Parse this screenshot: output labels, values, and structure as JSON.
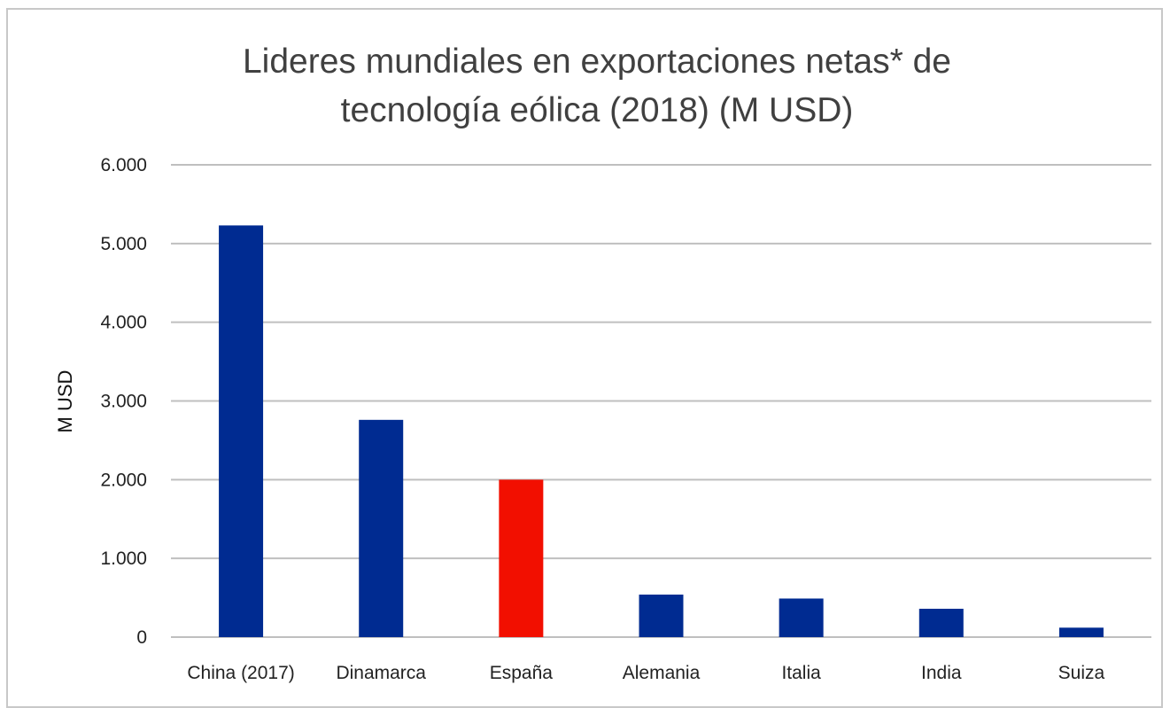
{
  "chart_data": {
    "type": "bar",
    "title": "Lideres mundiales en exportaciones netas* de tecnología eólica (2018) (M USD)",
    "title_lines": [
      "Lideres mundiales en exportaciones netas* de",
      "tecnología eólica (2018) (M USD)"
    ],
    "ylabel": "M USD",
    "xlabel": "",
    "ylim": [
      0,
      6000
    ],
    "yticks": [
      0,
      1000,
      2000,
      3000,
      4000,
      5000,
      6000
    ],
    "ytick_labels": [
      "0",
      "1.000",
      "2.000",
      "3.000",
      "4.000",
      "5.000",
      "6.000"
    ],
    "categories": [
      "China (2017)",
      "Dinamarca",
      "España",
      "Alemania",
      "Italia",
      "India",
      "Suiza"
    ],
    "values": [
      5230,
      2760,
      2000,
      540,
      490,
      360,
      120
    ],
    "bar_colors": [
      "#002b91",
      "#002b91",
      "#f20f00",
      "#002b91",
      "#002b91",
      "#002b91",
      "#002b91"
    ],
    "grid": true,
    "legend": "none"
  },
  "colors": {
    "gridline": "#bfbfbf",
    "default_bar": "#002b91",
    "highlight_bar": "#f20f00"
  }
}
